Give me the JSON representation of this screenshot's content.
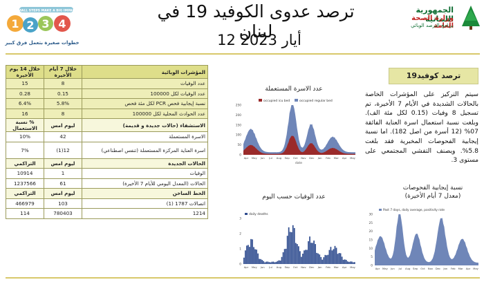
{
  "header": {
    "title": "ترصد عدوى الكوفيد 19 في لبنان",
    "date": "12 أيار 2023",
    "gov_line1": "الجمهورية اللبنانية",
    "gov_line2": "وزارة الصحة العامة",
    "gov_line3": "برنامج الترصد الوبائي",
    "campaign_banner": "SMALL STEPS MAKE A BIG IMPACT",
    "campaign_numbers": [
      "1",
      "2",
      "3",
      "4"
    ],
    "campaign_tagline": "خطوات صغيرة بتعمل فرق كبير",
    "colors": {
      "gold": "#d8c86a",
      "green": "#0a6b2f",
      "red": "#c0211f"
    }
  },
  "table": {
    "head": {
      "label": "المؤشرات الوبائية",
      "c1": "خلال 7 أيام الأخيرة",
      "c2": "خلال 14 يوم الأخيرة"
    },
    "indicators": [
      {
        "label": "عدد الوفيات",
        "v7": "8",
        "v14": "15"
      },
      {
        "label": "عدد الوفيات لكل 100000",
        "v7": "0.15",
        "v14": "0.28"
      },
      {
        "label": "نسبة إيجابية فحص PCR لكل مئة فحص",
        "v7": "5.8%",
        "v14": "6.4%"
      },
      {
        "label": "عدد الحوادث المحلية لكل 100000",
        "v7": "8",
        "v14": "16"
      }
    ],
    "hosp_head": {
      "label": "الاستشفاء (حالات جديدة و قديمة)",
      "c1": "ليوم امس",
      "c2": "% نسبة الاستعمال"
    },
    "hosp": [
      {
        "label": "الاسرة المستعملة",
        "v1": "42",
        "v2": "10%"
      },
      {
        "label": "اسرة العناية المركزة المستعملة (تنفس اصطناعي)",
        "v1": "12(1)",
        "v2": "7%"
      }
    ],
    "new_head": {
      "label": "الحالات الجديدة",
      "c1": "ليوم امس",
      "c2": "التراكمي"
    },
    "new_cases": [
      {
        "label": "الوفيات",
        "v1": "1",
        "v2": "10914"
      },
      {
        "label": "الحالات (المعدل اليومي للأيام 7 الأخيرة)",
        "v1": "61",
        "v2": "1237566"
      }
    ],
    "vax_head": {
      "label": "الخط الساخن",
      "c1": "ليوم امس",
      "c2": "التراكمي"
    },
    "vax": [
      {
        "label": "اتصالات 1787 (1)",
        "v1": "103",
        "v2": "466979"
      },
      {
        "label": "1214",
        "v1": "780403",
        "v2": "114"
      }
    ]
  },
  "summary": {
    "kicker": "ترصد كوفيد19",
    "paragraph": "سيتم التركيز على المؤشرات الخاصة بالحالات الشديدة في الأيام 7 الأخيرة، تم تسجيل 8 وفيات (0.15 لكل مئة الف). وبلغت نسبة استعمال اسرة العناية الفائقة 07% (12 أسرة من اصل 182). اما نسبة إيجابية الفحوصات المخبرية فقد بلغت 5.8%. ويصنف التفشي المجتمعي على مستوى 3.",
    "pos_title_1": "نسبة إيجابية الفحوصات",
    "pos_title_2": "(معدل 7 أيام الأخيرة)"
  },
  "charts": {
    "beds_title": "عدد الاسرة المستعملة",
    "deaths_title": "عدد الوفيات حسب اليوم",
    "beds_legend": [
      "occupied icu bed",
      "occupied regular bed"
    ],
    "deaths_legend": "daily deaths",
    "pos_legend": "Past 7 days, daily average, positivity rate",
    "months": [
      "Apr",
      "May",
      "Jun",
      "Jul",
      "Aug",
      "Sep",
      "Oct",
      "Nov",
      "Dec",
      "Jan",
      "Feb",
      "Mar",
      "Apr",
      "May"
    ],
    "beds_yticks": [
      "250",
      "200",
      "150",
      "100",
      "50",
      "0"
    ],
    "deaths_yticks": [
      "3",
      "2",
      "1",
      "0"
    ],
    "pos_yticks": [
      "30",
      "25",
      "20",
      "15",
      "10",
      "5",
      "0"
    ],
    "xlabel": "date"
  }
}
